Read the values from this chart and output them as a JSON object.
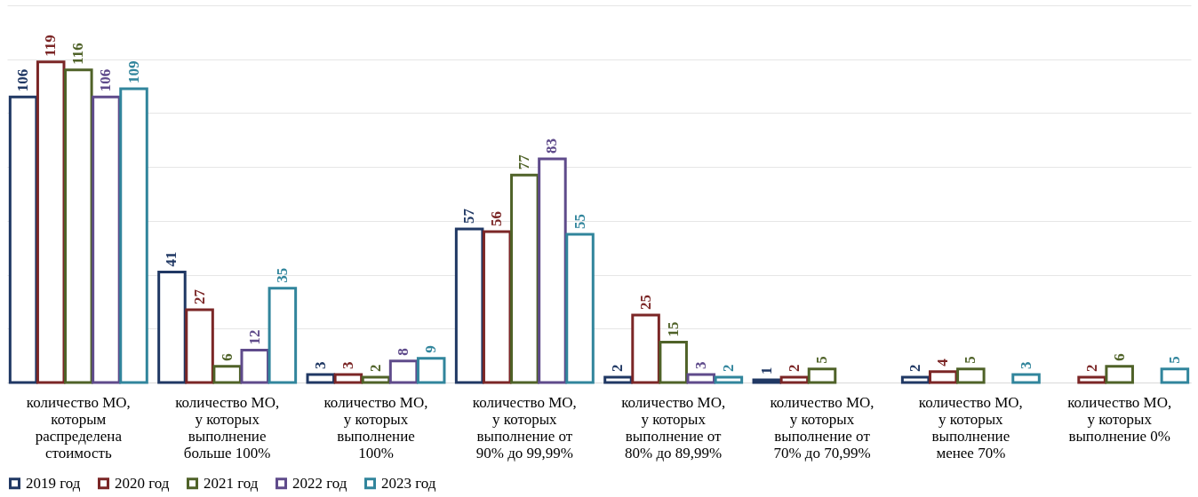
{
  "chart_data": {
    "type": "bar",
    "categories": [
      "количество МО, которым распределена стоимость",
      "количество МО, у которых выполнение больше 100%",
      "количество МО, у которых выполнение 100%",
      "количество МО, у которых выполнение от 90% до 99,99%",
      "количество МО, у которых выполнение от 80% до 89,99%",
      "количество МО, у которых выполнение от 70% до 70,99%",
      "количество МО, у которых выполнение менее 70%",
      "количество МО, у которых выполнение 0%"
    ],
    "series": [
      {
        "name": "2019 год",
        "color": "#203864",
        "values": [
          106,
          41,
          3,
          57,
          2,
          1,
          2,
          null
        ]
      },
      {
        "name": "2020 год",
        "color": "#7b2626",
        "values": [
          119,
          27,
          3,
          56,
          25,
          2,
          4,
          2
        ]
      },
      {
        "name": "2021 год",
        "color": "#4f6228",
        "values": [
          116,
          6,
          2,
          77,
          15,
          5,
          5,
          6
        ]
      },
      {
        "name": "2022 год",
        "color": "#5f4b8b",
        "values": [
          106,
          12,
          8,
          83,
          3,
          null,
          null,
          null
        ]
      },
      {
        "name": "2023 год",
        "color": "#31859c",
        "values": [
          109,
          35,
          9,
          55,
          2,
          null,
          3,
          5
        ]
      }
    ],
    "ylim": [
      0,
      140
    ],
    "yticks": [
      {
        "value": 0,
        "label": null
      },
      {
        "value": 20,
        "label": null
      },
      {
        "value": 40,
        "label": null
      },
      {
        "value": 60,
        "label": null
      },
      {
        "value": 80,
        "label": null
      },
      {
        "value": 100,
        "label": null
      },
      {
        "value": 120,
        "label": null
      },
      {
        "value": 140,
        "label": null
      }
    ],
    "tick_labels": "x",
    "grid": "y",
    "legend": "bottom",
    "data_labels": true
  }
}
